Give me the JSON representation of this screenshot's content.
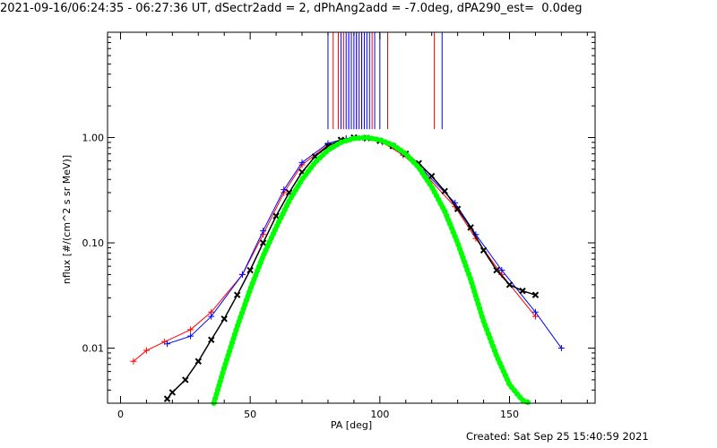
{
  "title": "2021-09-16/06:24:35 - 06:27:36 UT, dSectr2add = 2, dPhAng2add = -7.0deg, dPA290_est=  0.0deg",
  "created": "Created: Sat Sep 25 15:40:59 2021",
  "colors": {
    "red": "#ff0000",
    "blue": "#0000ff",
    "black": "#000000",
    "green": "#00ff00"
  },
  "chart_data": {
    "type": "line",
    "xlabel": "PA [deg]",
    "ylabel": "nflux [#/(cm^2 s sr MeV)]",
    "xlim": [
      -5,
      183
    ],
    "ylim": [
      0.003,
      10
    ],
    "yscale": "log",
    "xticks": [
      0,
      50,
      100,
      150
    ],
    "xtick_labels": [
      "0",
      "50",
      "100",
      "150"
    ],
    "yticks": [
      0.01,
      0.1,
      1.0
    ],
    "ytick_labels": [
      "0.01",
      "0.10",
      "1.00"
    ],
    "vertical_lines": {
      "red": [
        82,
        84,
        86,
        88,
        91,
        93,
        97,
        103,
        121
      ],
      "blue": [
        80,
        85,
        87,
        88,
        89,
        90,
        91,
        92,
        93,
        94,
        95,
        96,
        98,
        100,
        124
      ],
      "ymin": 1.2
    },
    "series": [
      {
        "color": "red",
        "x": [
          5,
          10,
          17,
          27,
          35,
          47,
          55,
          63,
          70,
          80,
          87,
          94,
          101,
          109,
          117,
          129,
          137,
          147,
          160
        ],
        "y": [
          0.0075,
          0.0095,
          0.0115,
          0.015,
          0.022,
          0.05,
          0.12,
          0.3,
          0.55,
          0.85,
          0.97,
          0.98,
          0.9,
          0.68,
          0.46,
          0.22,
          0.11,
          0.05,
          0.02
        ]
      },
      {
        "color": "blue",
        "x": [
          18,
          27,
          35,
          47,
          55,
          63,
          70,
          80,
          87,
          94,
          101,
          109,
          117,
          129,
          137,
          147,
          160,
          170
        ],
        "y": [
          0.011,
          0.013,
          0.02,
          0.05,
          0.13,
          0.32,
          0.58,
          0.88,
          0.98,
          0.99,
          0.92,
          0.7,
          0.48,
          0.24,
          0.12,
          0.055,
          0.022,
          0.01
        ]
      },
      {
        "color": "black",
        "x": [
          18,
          20,
          25,
          30,
          35,
          40,
          45,
          50,
          55,
          60,
          65,
          70,
          75,
          80,
          85,
          90,
          95,
          100,
          105,
          110,
          115,
          120,
          125,
          130,
          135,
          140,
          145,
          150,
          155,
          160
        ],
        "y": [
          0.0033,
          0.0038,
          0.005,
          0.0075,
          0.012,
          0.019,
          0.032,
          0.055,
          0.1,
          0.18,
          0.3,
          0.47,
          0.66,
          0.83,
          0.95,
          1.0,
          0.99,
          0.93,
          0.83,
          0.7,
          0.57,
          0.43,
          0.31,
          0.21,
          0.14,
          0.085,
          0.055,
          0.04,
          0.035,
          0.032
        ]
      },
      {
        "color": "green",
        "x": [
          36,
          40,
          45,
          50,
          55,
          60,
          65,
          70,
          75,
          80,
          85,
          90,
          95,
          100,
          105,
          110,
          115,
          120,
          125,
          130,
          135,
          140,
          145,
          150,
          155,
          158
        ],
        "y": [
          0.003,
          0.0065,
          0.016,
          0.036,
          0.075,
          0.14,
          0.25,
          0.4,
          0.58,
          0.76,
          0.9,
          0.98,
          1.0,
          0.95,
          0.85,
          0.7,
          0.52,
          0.34,
          0.2,
          0.1,
          0.045,
          0.018,
          0.0085,
          0.0045,
          0.0032,
          0.003
        ]
      }
    ]
  }
}
